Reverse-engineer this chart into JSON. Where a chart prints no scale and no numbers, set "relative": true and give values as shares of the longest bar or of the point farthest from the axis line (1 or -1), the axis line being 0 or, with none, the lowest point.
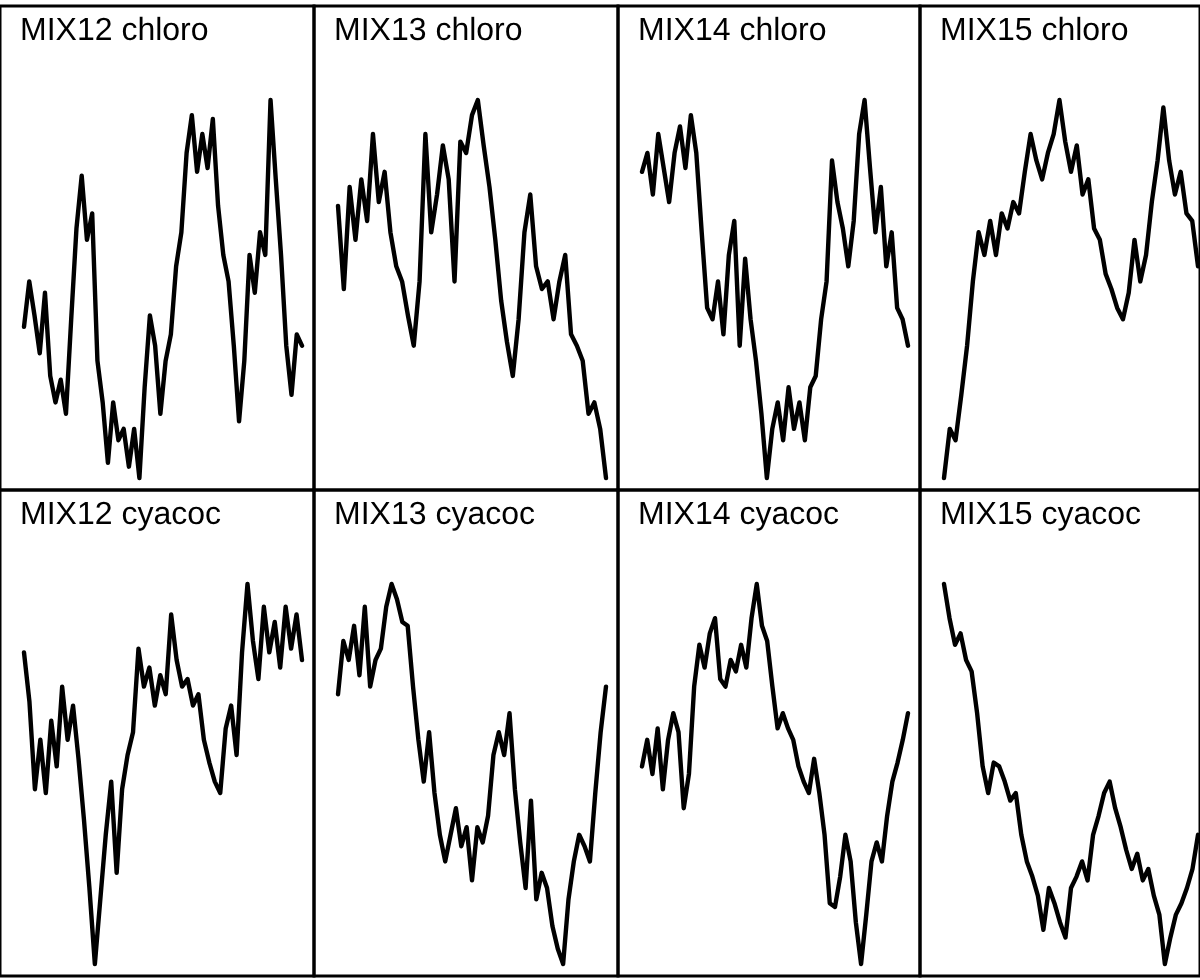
{
  "chart_data": [
    {
      "type": "line",
      "title": "MIX12 chloro",
      "relative": true,
      "color": "#000000",
      "categories": [
        null,
        null,
        null,
        null,
        null,
        null,
        null,
        null,
        null,
        null,
        null,
        null,
        null,
        null,
        null,
        null,
        null,
        null,
        null,
        null,
        null,
        null,
        null,
        null,
        null,
        null,
        null,
        null,
        null,
        null,
        null,
        null,
        null,
        null,
        null,
        null,
        null,
        null,
        null,
        null,
        null,
        null,
        null,
        null,
        null,
        null,
        null,
        null,
        null,
        null,
        null,
        null,
        null,
        null
      ],
      "values": [
        0.4,
        0.52,
        0.43,
        0.33,
        0.49,
        0.27,
        0.2,
        0.26,
        0.17,
        0.42,
        0.66,
        0.8,
        0.63,
        0.7,
        0.31,
        0.2,
        0.04,
        0.2,
        0.1,
        0.13,
        0.03,
        0.13,
        0,
        0.24,
        0.43,
        0.35,
        0.17,
        0.31,
        0.38,
        0.56,
        0.65,
        0.86,
        0.96,
        0.81,
        0.91,
        0.82,
        0.95,
        0.72,
        0.59,
        0.52,
        0.35,
        0.15,
        0.31,
        0.59,
        0.49,
        0.65,
        0.59,
        1,
        0.79,
        0.59,
        0.35,
        0.22,
        0.38,
        0.35
      ]
    },
    {
      "type": "line",
      "title": "MIX13 chloro",
      "relative": true,
      "color": "#000000",
      "categories": [
        null,
        null,
        null,
        null,
        null,
        null,
        null,
        null,
        null,
        null,
        null,
        null,
        null,
        null,
        null,
        null,
        null,
        null,
        null,
        null,
        null,
        null,
        null,
        null,
        null,
        null,
        null,
        null,
        null,
        null,
        null,
        null,
        null,
        null,
        null,
        null,
        null,
        null,
        null,
        null,
        null,
        null,
        null,
        null,
        null,
        null,
        null
      ],
      "values": [
        0.72,
        0.5,
        0.77,
        0.63,
        0.79,
        0.68,
        0.91,
        0.73,
        0.81,
        0.65,
        0.56,
        0.52,
        0.43,
        0.35,
        0.52,
        0.91,
        0.65,
        0.75,
        0.88,
        0.79,
        0.52,
        0.89,
        0.86,
        0.96,
        1,
        0.88,
        0.77,
        0.63,
        0.47,
        0.36,
        0.27,
        0.42,
        0.65,
        0.75,
        0.56,
        0.5,
        0.52,
        0.42,
        0.52,
        0.59,
        0.38,
        0.35,
        0.31,
        0.17,
        0.2,
        0.13,
        0
      ]
    },
    {
      "type": "line",
      "title": "MIX14 chloro",
      "relative": true,
      "color": "#000000",
      "categories": [
        null,
        null,
        null,
        null,
        null,
        null,
        null,
        null,
        null,
        null,
        null,
        null,
        null,
        null,
        null,
        null,
        null,
        null,
        null,
        null,
        null,
        null,
        null,
        null,
        null,
        null,
        null,
        null,
        null,
        null,
        null,
        null,
        null,
        null,
        null,
        null,
        null,
        null,
        null,
        null,
        null,
        null,
        null,
        null,
        null,
        null,
        null,
        null,
        null,
        null
      ],
      "values": [
        0.81,
        0.86,
        0.75,
        0.91,
        0.82,
        0.73,
        0.86,
        0.93,
        0.82,
        0.96,
        0.86,
        0.65,
        0.45,
        0.42,
        0.52,
        0.38,
        0.59,
        0.68,
        0.35,
        0.58,
        0.42,
        0.31,
        0.17,
        0,
        0.13,
        0.2,
        0.1,
        0.24,
        0.13,
        0.2,
        0.1,
        0.24,
        0.27,
        0.42,
        0.52,
        0.84,
        0.73,
        0.66,
        0.56,
        0.68,
        0.91,
        1,
        0.82,
        0.65,
        0.77,
        0.56,
        0.65,
        0.45,
        0.42,
        0.35
      ]
    },
    {
      "type": "line",
      "title": "MIX15 chloro",
      "relative": true,
      "color": "#000000",
      "categories": [
        null,
        null,
        null,
        null,
        null,
        null,
        null,
        null,
        null,
        null,
        null,
        null,
        null,
        null,
        null,
        null,
        null,
        null,
        null,
        null,
        null,
        null,
        null,
        null,
        null,
        null,
        null,
        null,
        null,
        null,
        null,
        null,
        null,
        null,
        null,
        null,
        null,
        null,
        null,
        null,
        null,
        null,
        null,
        null,
        null
      ],
      "values": [
        0,
        0.13,
        0.1,
        0.22,
        0.35,
        0.52,
        0.65,
        0.59,
        0.68,
        0.59,
        0.7,
        0.66,
        0.73,
        0.7,
        0.81,
        0.91,
        0.84,
        0.79,
        0.86,
        0.91,
        1,
        0.89,
        0.81,
        0.88,
        0.75,
        0.79,
        0.66,
        0.63,
        0.54,
        0.5,
        0.45,
        0.42,
        0.49,
        0.63,
        0.52,
        0.59,
        0.73,
        0.84,
        0.98,
        0.84,
        0.75,
        0.81,
        0.7,
        0.68,
        0.56
      ]
    },
    {
      "type": "line",
      "title": "MIX12 cyacoc",
      "relative": true,
      "color": "#000000",
      "categories": [
        null,
        null,
        null,
        null,
        null,
        null,
        null,
        null,
        null,
        null,
        null,
        null,
        null,
        null,
        null,
        null,
        null,
        null,
        null,
        null,
        null,
        null,
        null,
        null,
        null,
        null,
        null,
        null,
        null,
        null,
        null,
        null,
        null,
        null,
        null,
        null,
        null,
        null,
        null,
        null,
        null,
        null,
        null,
        null,
        null,
        null,
        null,
        null,
        null,
        null,
        null,
        null
      ],
      "values": [
        0.82,
        0.69,
        0.46,
        0.59,
        0.45,
        0.64,
        0.52,
        0.73,
        0.59,
        0.68,
        0.54,
        0.38,
        0.2,
        0,
        0.17,
        0.34,
        0.48,
        0.24,
        0.46,
        0.55,
        0.61,
        0.83,
        0.73,
        0.78,
        0.68,
        0.76,
        0.71,
        0.92,
        0.8,
        0.73,
        0.75,
        0.68,
        0.71,
        0.59,
        0.53,
        0.48,
        0.45,
        0.62,
        0.68,
        0.55,
        0.82,
        1,
        0.85,
        0.75,
        0.94,
        0.82,
        0.9,
        0.78,
        0.94,
        0.83,
        0.92,
        0.8
      ]
    },
    {
      "type": "line",
      "title": "MIX13 cyacoc",
      "relative": true,
      "color": "#000000",
      "categories": [
        null,
        null,
        null,
        null,
        null,
        null,
        null,
        null,
        null,
        null,
        null,
        null,
        null,
        null,
        null,
        null,
        null,
        null,
        null,
        null,
        null,
        null,
        null,
        null,
        null,
        null,
        null,
        null,
        null,
        null,
        null,
        null,
        null,
        null,
        null,
        null,
        null,
        null,
        null,
        null,
        null,
        null,
        null,
        null,
        null,
        null,
        null,
        null,
        null,
        null,
        null
      ],
      "values": [
        0.71,
        0.85,
        0.8,
        0.89,
        0.76,
        0.94,
        0.73,
        0.8,
        0.83,
        0.94,
        1,
        0.96,
        0.9,
        0.89,
        0.73,
        0.59,
        0.48,
        0.61,
        0.45,
        0.34,
        0.27,
        0.34,
        0.41,
        0.31,
        0.36,
        0.22,
        0.36,
        0.32,
        0.39,
        0.55,
        0.61,
        0.55,
        0.66,
        0.46,
        0.32,
        0.2,
        0.43,
        0.17,
        0.24,
        0.2,
        0.1,
        0.04,
        0,
        0.17,
        0.27,
        0.34,
        0.31,
        0.27,
        0.45,
        0.61,
        0.73
      ]
    },
    {
      "type": "line",
      "title": "MIX14 cyacoc",
      "relative": true,
      "color": "#000000",
      "categories": [
        null,
        null,
        null,
        null,
        null,
        null,
        null,
        null,
        null,
        null,
        null,
        null,
        null,
        null,
        null,
        null,
        null,
        null,
        null,
        null,
        null,
        null,
        null,
        null,
        null,
        null,
        null,
        null,
        null,
        null,
        null,
        null,
        null,
        null,
        null,
        null,
        null,
        null,
        null,
        null,
        null,
        null,
        null,
        null,
        null,
        null,
        null,
        null,
        null,
        null,
        null,
        null
      ],
      "values": [
        0.52,
        0.59,
        0.5,
        0.62,
        0.46,
        0.59,
        0.66,
        0.61,
        0.41,
        0.5,
        0.73,
        0.84,
        0.78,
        0.87,
        0.91,
        0.75,
        0.73,
        0.8,
        0.77,
        0.84,
        0.78,
        0.91,
        1,
        0.89,
        0.85,
        0.73,
        0.62,
        0.66,
        0.62,
        0.59,
        0.52,
        0.48,
        0.45,
        0.54,
        0.45,
        0.34,
        0.16,
        0.15,
        0.23,
        0.34,
        0.27,
        0.11,
        0,
        0.13,
        0.27,
        0.32,
        0.27,
        0.39,
        0.48,
        0.53,
        0.59,
        0.66
      ]
    },
    {
      "type": "line",
      "title": "MIX15 cyacoc",
      "relative": true,
      "color": "#000000",
      "categories": [
        null,
        null,
        null,
        null,
        null,
        null,
        null,
        null,
        null,
        null,
        null,
        null,
        null,
        null,
        null,
        null,
        null,
        null,
        null,
        null,
        null,
        null,
        null,
        null,
        null,
        null,
        null,
        null,
        null,
        null,
        null,
        null,
        null,
        null,
        null,
        null,
        null,
        null,
        null,
        null,
        null,
        null,
        null,
        null,
        null,
        null,
        null
      ],
      "values": [
        1,
        0.91,
        0.84,
        0.87,
        0.8,
        0.77,
        0.66,
        0.52,
        0.45,
        0.53,
        0.52,
        0.48,
        0.43,
        0.45,
        0.34,
        0.27,
        0.23,
        0.18,
        0.09,
        0.2,
        0.16,
        0.11,
        0.07,
        0.2,
        0.23,
        0.27,
        0.22,
        0.34,
        0.39,
        0.45,
        0.48,
        0.41,
        0.36,
        0.3,
        0.25,
        0.29,
        0.22,
        0.25,
        0.18,
        0.13,
        0,
        0.07,
        0.13,
        0.16,
        0.2,
        0.25,
        0.34
      ]
    }
  ]
}
